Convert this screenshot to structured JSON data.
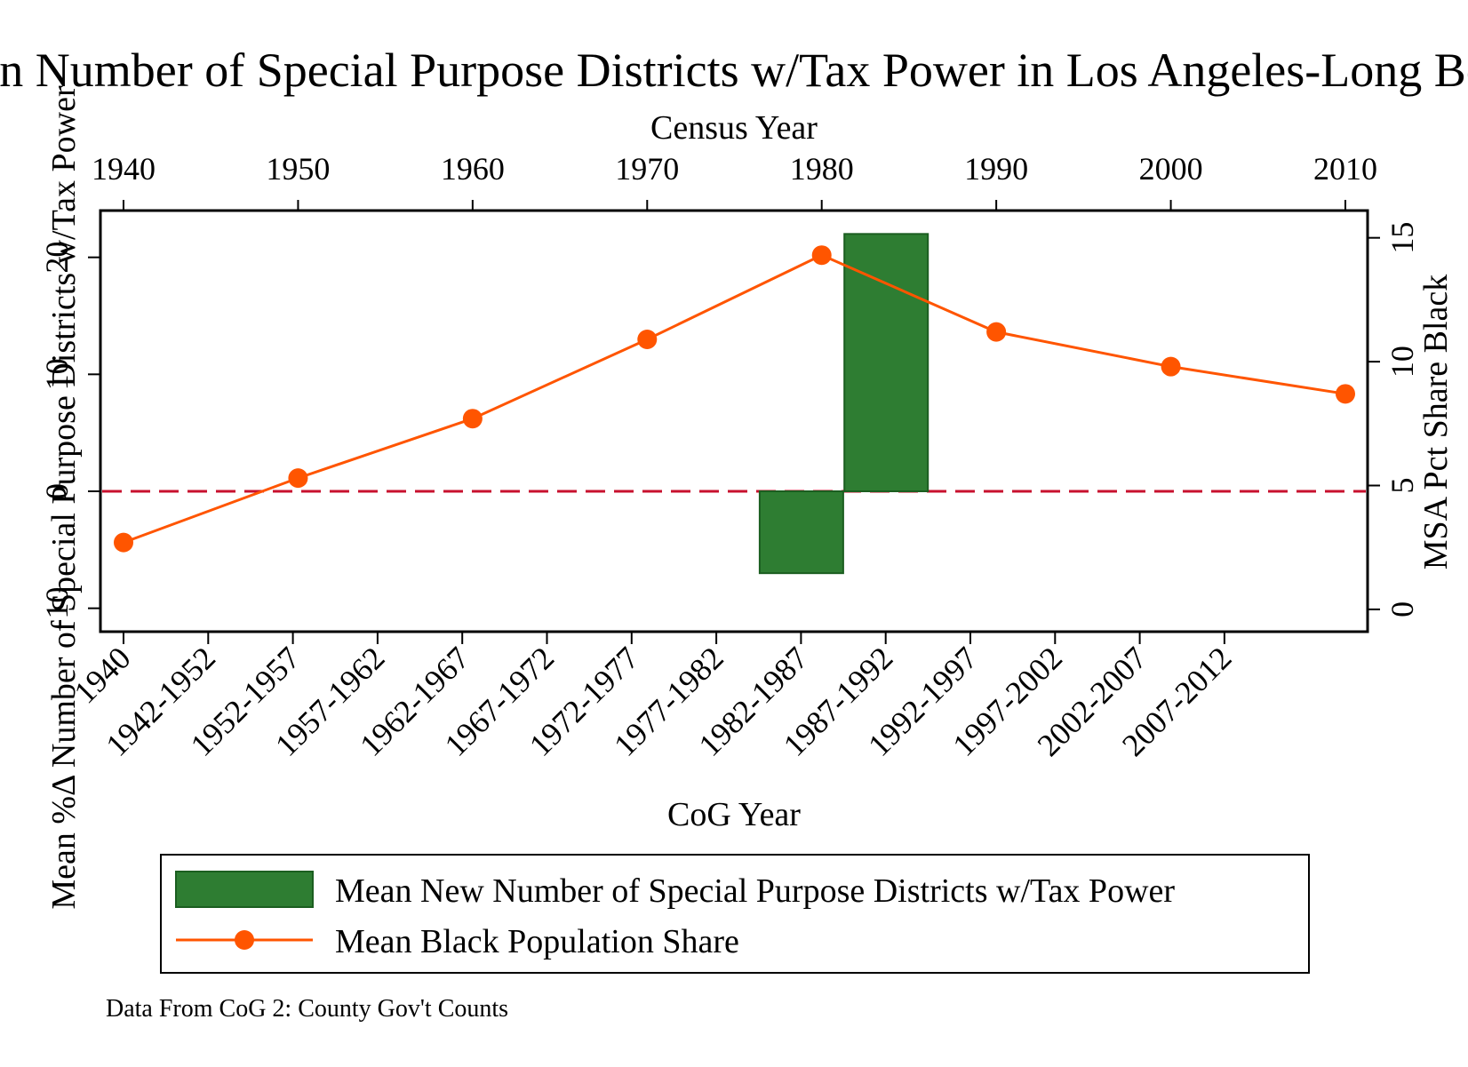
{
  "chart_data": {
    "type": "bar+line",
    "title": "Mean Number of Special Purpose Districts w/Tax Power in Los Angeles-Long Beach",
    "top_axis": {
      "label": "Census Year",
      "ticks": [
        "1940",
        "1950",
        "1960",
        "1970",
        "1980",
        "1990",
        "2000",
        "2010"
      ],
      "range": [
        1940,
        2010
      ]
    },
    "bottom_axis": {
      "label": "CoG Year",
      "categories": [
        "1940",
        "1942-1952",
        "1952-1957",
        "1957-1962",
        "1962-1967",
        "1967-1972",
        "1972-1977",
        "1977-1982",
        "1982-1987",
        "1987-1992",
        "1992-1997",
        "1997-2002",
        "2002-2007",
        "2007-2012"
      ]
    },
    "left_axis": {
      "label": "Mean %Δ Number of Special Purpose Districts w/Tax Power",
      "ticks": [
        "-10",
        "0",
        "10",
        "20"
      ],
      "range": [
        -12,
        24
      ]
    },
    "right_axis": {
      "label": "MSA Pct Share Black",
      "ticks": [
        "0",
        "5",
        "10",
        "15"
      ],
      "range": [
        -0.9,
        16.1
      ]
    },
    "reference_line": {
      "axis": "left",
      "value": 0,
      "color": "#c8102e",
      "style": "dashed"
    },
    "series": [
      {
        "name": "Mean New Number of Special Purpose Districts w/Tax Power",
        "type": "bar",
        "axis": "left",
        "color": "#2e7d32",
        "bars": [
          {
            "category": "1982-1987",
            "value": -7
          },
          {
            "category": "1987-1992",
            "value": 22
          }
        ]
      },
      {
        "name": "Mean Black Population Share",
        "type": "line",
        "axis": "right",
        "x_axis": "top",
        "color": "#ff5500",
        "points": [
          {
            "x": 1940,
            "y": 2.7
          },
          {
            "x": 1950,
            "y": 5.3
          },
          {
            "x": 1960,
            "y": 7.7
          },
          {
            "x": 1970,
            "y": 10.9
          },
          {
            "x": 1980,
            "y": 14.3
          },
          {
            "x": 1990,
            "y": 11.2
          },
          {
            "x": 2000,
            "y": 9.8
          },
          {
            "x": 2010,
            "y": 8.7
          }
        ]
      }
    ],
    "legend": {
      "position": "bottom",
      "entries": [
        "Mean New Number of Special Purpose Districts w/Tax Power",
        "Mean Black Population Share"
      ]
    },
    "note": "Data From CoG 2: County Gov't Counts"
  }
}
